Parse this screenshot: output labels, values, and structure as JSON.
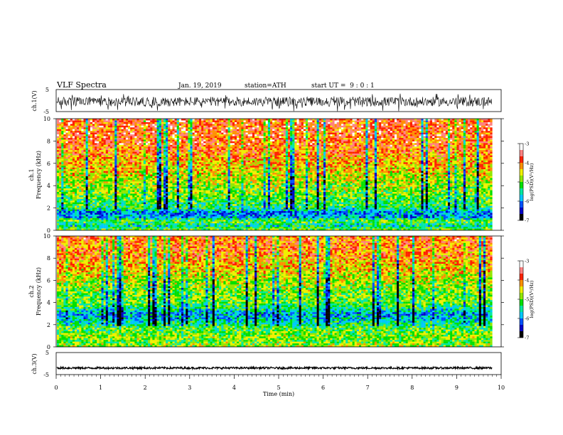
{
  "header": {
    "title": "VLF Spectra",
    "date": "Jan. 19, 2019",
    "station": "station=ATH",
    "start": "start UT =  9 : 0 : 1"
  },
  "colors": {
    "spectrum": [
      "#000000",
      "#0000c8",
      "#0050ff",
      "#00c8ff",
      "#00e8a0",
      "#00e000",
      "#90e800",
      "#f0f000",
      "#ff9000",
      "#ff2000",
      "#ff8080",
      "#ffffff"
    ]
  },
  "chart_data": [
    {
      "type": "line",
      "name": "waveform-ch1",
      "ylabel": "ch.1(V)",
      "ylim": [
        -5,
        5
      ],
      "yticks": [
        "5",
        "-5"
      ],
      "xlim": [
        0,
        10
      ],
      "x_extent": [
        0,
        9.8
      ],
      "amplitude_range": [
        -3.5,
        2.2
      ]
    },
    {
      "type": "heatmap",
      "name": "spectrogram-ch1",
      "ylabel_top": "ch.1",
      "ylabel": "Frequency (kHz)",
      "ylim": [
        0,
        10
      ],
      "yticks": [
        "0",
        "2",
        "4",
        "6",
        "8",
        "10"
      ],
      "xlim": [
        0,
        10
      ],
      "x_extent": [
        0,
        9.8
      ],
      "colorbar": {
        "label": "log(PSD)(V²/Hz)",
        "range": [
          -7,
          -3
        ],
        "ticks": [
          "-3",
          "-4",
          "-5",
          "-6",
          "-7"
        ]
      },
      "profile": [
        {
          "f": 0.0,
          "v": -4.9
        },
        {
          "f": 0.4,
          "v": -5.6
        },
        {
          "f": 0.8,
          "v": -5.0
        },
        {
          "f": 1.2,
          "v": -5.9
        },
        {
          "f": 1.6,
          "v": -6.0
        },
        {
          "f": 2.0,
          "v": -5.3
        },
        {
          "f": 3.0,
          "v": -5.0
        },
        {
          "f": 4.0,
          "v": -4.8
        },
        {
          "f": 5.0,
          "v": -4.55
        },
        {
          "f": 6.0,
          "v": -4.3
        },
        {
          "f": 7.0,
          "v": -4.05
        },
        {
          "f": 8.0,
          "v": -3.9
        },
        {
          "f": 9.0,
          "v": -3.85
        },
        {
          "f": 10.0,
          "v": -3.8
        }
      ]
    },
    {
      "type": "heatmap",
      "name": "spectrogram-ch2",
      "ylabel_top": "ch.2",
      "ylabel": "Frequency (kHz)",
      "ylim": [
        0,
        10
      ],
      "yticks": [
        "0",
        "2",
        "4",
        "6",
        "8",
        "10"
      ],
      "xlim": [
        0,
        10
      ],
      "x_extent": [
        0,
        9.8
      ],
      "colorbar": {
        "label": "log(PSD)(V²/Hz)",
        "range": [
          -7,
          -3
        ],
        "ticks": [
          "-3",
          "-4",
          "-5",
          "-6",
          "-7"
        ]
      },
      "profile": [
        {
          "f": 0.0,
          "v": -4.8
        },
        {
          "f": 0.5,
          "v": -5.0
        },
        {
          "f": 1.0,
          "v": -4.9
        },
        {
          "f": 1.5,
          "v": -5.1
        },
        {
          "f": 2.0,
          "v": -5.3
        },
        {
          "f": 2.5,
          "v": -5.7
        },
        {
          "f": 3.0,
          "v": -5.9
        },
        {
          "f": 3.5,
          "v": -5.3
        },
        {
          "f": 4.0,
          "v": -5.0
        },
        {
          "f": 5.0,
          "v": -4.95
        },
        {
          "f": 6.0,
          "v": -4.7
        },
        {
          "f": 7.0,
          "v": -4.4
        },
        {
          "f": 8.0,
          "v": -4.15
        },
        {
          "f": 9.0,
          "v": -4.0
        },
        {
          "f": 10.0,
          "v": -3.95
        }
      ]
    },
    {
      "type": "line",
      "name": "waveform-ch3",
      "ylabel": "ch.3(V)",
      "ylim": [
        -5,
        5
      ],
      "yticks": [
        "5",
        "-5"
      ],
      "xlim": [
        0,
        10
      ],
      "x_extent": [
        0,
        9.8
      ],
      "level": -2.0,
      "xlabel": "Time (min)",
      "xticks": [
        "0",
        "1",
        "2",
        "3",
        "4",
        "5",
        "6",
        "7",
        "8",
        "9",
        "10"
      ]
    }
  ]
}
